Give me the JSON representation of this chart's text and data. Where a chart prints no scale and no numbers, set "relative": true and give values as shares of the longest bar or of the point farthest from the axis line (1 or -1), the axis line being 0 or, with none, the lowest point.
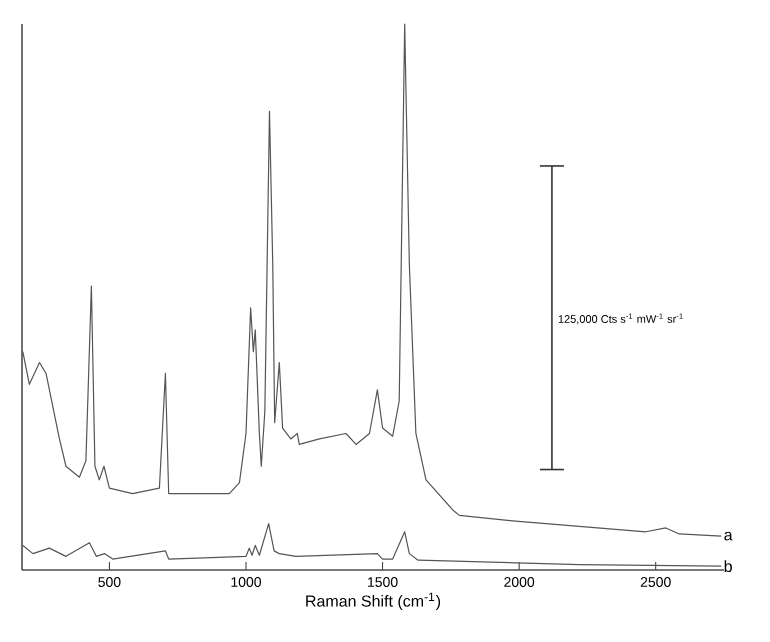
{
  "chart_data": {
    "type": "line",
    "relative": true,
    "xlabel": "Raman Shift (cm$^{-1}$)",
    "xlim": [
      180,
      2750
    ],
    "xticks": [
      500,
      1000,
      1500,
      2000,
      2500
    ],
    "annotations": [
      "125,000 Cts s$^{-1}$ mW$^{-1}$ sr$^{-1}$"
    ],
    "series": [
      {
        "name": "a",
        "color": "#555555",
        "x": [
          183,
          207,
          244,
          268,
          317,
          341,
          390,
          414,
          434,
          447,
          463,
          480,
          500,
          585,
          683,
          705,
          717,
          829,
          939,
          976,
          1000,
          1017,
          1027,
          1034,
          1049,
          1056,
          1069,
          1086,
          1098,
          1105,
          1122,
          1134,
          1164,
          1188,
          1195,
          1269,
          1366,
          1403,
          1452,
          1481,
          1500,
          1537,
          1561,
          1581,
          1598,
          1622,
          1659,
          1757,
          1781,
          1976,
          2220,
          2464,
          2537,
          2586,
          2740
        ],
        "values": [
          0.4,
          0.34,
          0.38,
          0.36,
          0.24,
          0.19,
          0.17,
          0.2,
          0.52,
          0.19,
          0.165,
          0.19,
          0.15,
          0.14,
          0.15,
          0.36,
          0.14,
          0.14,
          0.14,
          0.16,
          0.25,
          0.48,
          0.4,
          0.44,
          0.25,
          0.19,
          0.29,
          0.84,
          0.56,
          0.27,
          0.38,
          0.26,
          0.24,
          0.25,
          0.23,
          0.24,
          0.25,
          0.23,
          0.25,
          0.33,
          0.26,
          0.245,
          0.31,
          1.0,
          0.56,
          0.25,
          0.165,
          0.11,
          0.1,
          0.09,
          0.08,
          0.07,
          0.077,
          0.066,
          0.062
        ]
      },
      {
        "color": "#333333",
        "x": [
          2120,
          2120
        ],
        "values": [
          0.184,
          0.74
        ]
      },
      {
        "name": "b",
        "color": "#555555",
        "x": [
          183,
          220,
          280,
          341,
          427,
          452,
          482,
          512,
          705,
          717,
          1000,
          1012,
          1022,
          1034,
          1049,
          1083,
          1103,
          1122,
          1183,
          1481,
          1500,
          1537,
          1581,
          1598,
          1630,
          2220,
          2740
        ],
        "values": [
          0.045,
          0.03,
          0.04,
          0.025,
          0.05,
          0.025,
          0.03,
          0.02,
          0.035,
          0.02,
          0.025,
          0.04,
          0.027,
          0.045,
          0.027,
          0.085,
          0.035,
          0.03,
          0.025,
          0.03,
          0.02,
          0.02,
          0.07,
          0.03,
          0.018,
          0.01,
          0.007
        ]
      }
    ]
  }
}
